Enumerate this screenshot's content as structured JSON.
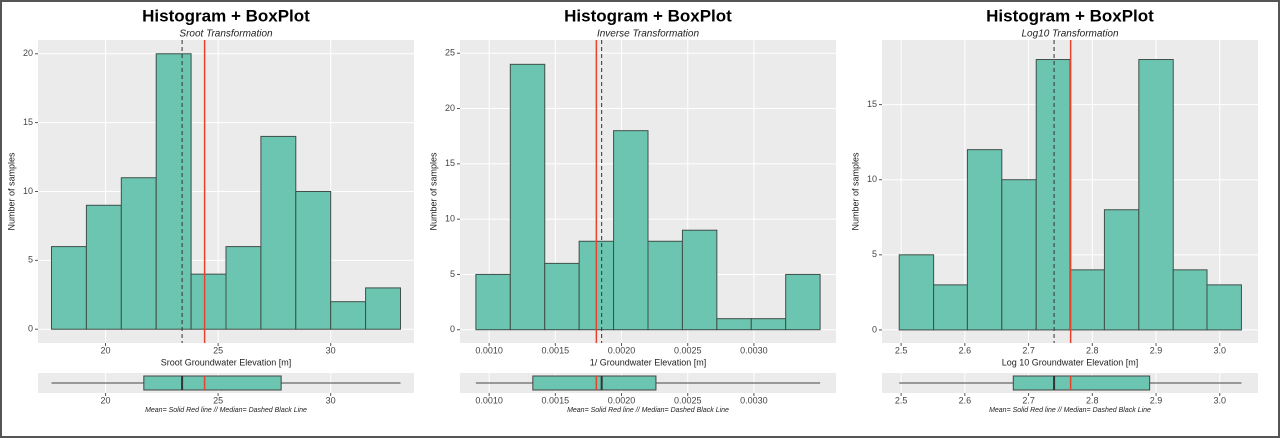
{
  "chart_data": [
    {
      "type": "histogram",
      "title": "Histogram + BoxPlot",
      "subtitle": "Sroot Transformation",
      "x_label": "Sroot Groundwater Elevation [m]",
      "y_label": "Number of samples",
      "bins": [
        17.6,
        19.15,
        20.7,
        22.25,
        23.8,
        25.35,
        26.9,
        28.45,
        30.0,
        31.55,
        33.1
      ],
      "counts": [
        6,
        9,
        11,
        20,
        4,
        6,
        14,
        10,
        2,
        3
      ],
      "color": "#6cc5b0",
      "edge_color": "#3f4f49",
      "xlim": [
        17.0,
        33.7
      ],
      "ylim": [
        -1,
        21
      ],
      "xticks": [
        20,
        25,
        30
      ],
      "yticks": [
        0,
        5,
        10,
        15,
        20
      ],
      "grid": true,
      "mean": 24.4,
      "median": 23.4,
      "mean_color": "#e8412c",
      "median_color": "#333333",
      "boxplot": {
        "whisker_low": 17.6,
        "q1": 21.7,
        "q3": 27.8,
        "whisker_high": 33.1
      },
      "caption": "Mean= Solid Red line // Median= Dashed Black Line"
    },
    {
      "type": "histogram",
      "title": "Histogram + BoxPlot",
      "subtitle": "Inverse Transformation",
      "x_label": "1/ Groundwater Elevation [m]",
      "y_label": "Number of samples",
      "bins": [
        0.0009,
        0.00116,
        0.00142,
        0.00168,
        0.00194,
        0.0022,
        0.00246,
        0.00272,
        0.00298,
        0.00324,
        0.0035
      ],
      "counts": [
        5,
        24,
        6,
        8,
        18,
        8,
        9,
        1,
        1,
        5
      ],
      "color": "#6cc5b0",
      "edge_color": "#3f4f49",
      "xlim": [
        0.00078,
        0.00362
      ],
      "ylim": [
        -1.2,
        26.2
      ],
      "xticks": [
        {
          "value": 0.001,
          "label": "0.0010"
        },
        0.0015,
        {
          "value": 0.002,
          "label": "0.0020"
        },
        0.0025,
        {
          "value": 0.003,
          "label": "0.0030"
        }
      ],
      "yticks": [
        0,
        5,
        10,
        15,
        20,
        25
      ],
      "grid": true,
      "mean": 0.00181,
      "median": 0.00185,
      "mean_color": "#e8412c",
      "median_color": "#333333",
      "boxplot": {
        "whisker_low": 0.0009,
        "q1": 0.00133,
        "q3": 0.00226,
        "whisker_high": 0.0035
      },
      "caption": "Mean= Solid Red line // Median= Dashed Black Line"
    },
    {
      "type": "histogram",
      "title": "Histogram + BoxPlot",
      "subtitle": "Log10 Transformation",
      "x_label": "Log 10 Groundwater Elevation [m]",
      "y_label": "Number of samples",
      "bins": [
        2.497,
        2.551,
        2.604,
        2.658,
        2.712,
        2.765,
        2.819,
        2.873,
        2.927,
        2.98,
        3.034
      ],
      "counts": [
        5,
        3,
        12,
        10,
        18,
        4,
        8,
        18,
        4,
        3
      ],
      "color": "#6cc5b0",
      "edge_color": "#3f4f49",
      "xlim": [
        2.47,
        3.06
      ],
      "ylim": [
        -0.87,
        19.3
      ],
      "xticks": [
        2.5,
        2.6,
        2.7,
        2.8,
        2.9,
        {
          "value": 3,
          "label": "3.0"
        }
      ],
      "yticks": [
        0,
        5,
        10,
        15
      ],
      "grid": true,
      "mean": 2.766,
      "median": 2.74,
      "mean_color": "#e8412c",
      "median_color": "#333333",
      "boxplot": {
        "whisker_low": 2.497,
        "q1": 2.676,
        "q3": 2.89,
        "whisker_high": 3.034
      },
      "caption": "Mean= Solid Red line // Median= Dashed Black Line"
    }
  ]
}
